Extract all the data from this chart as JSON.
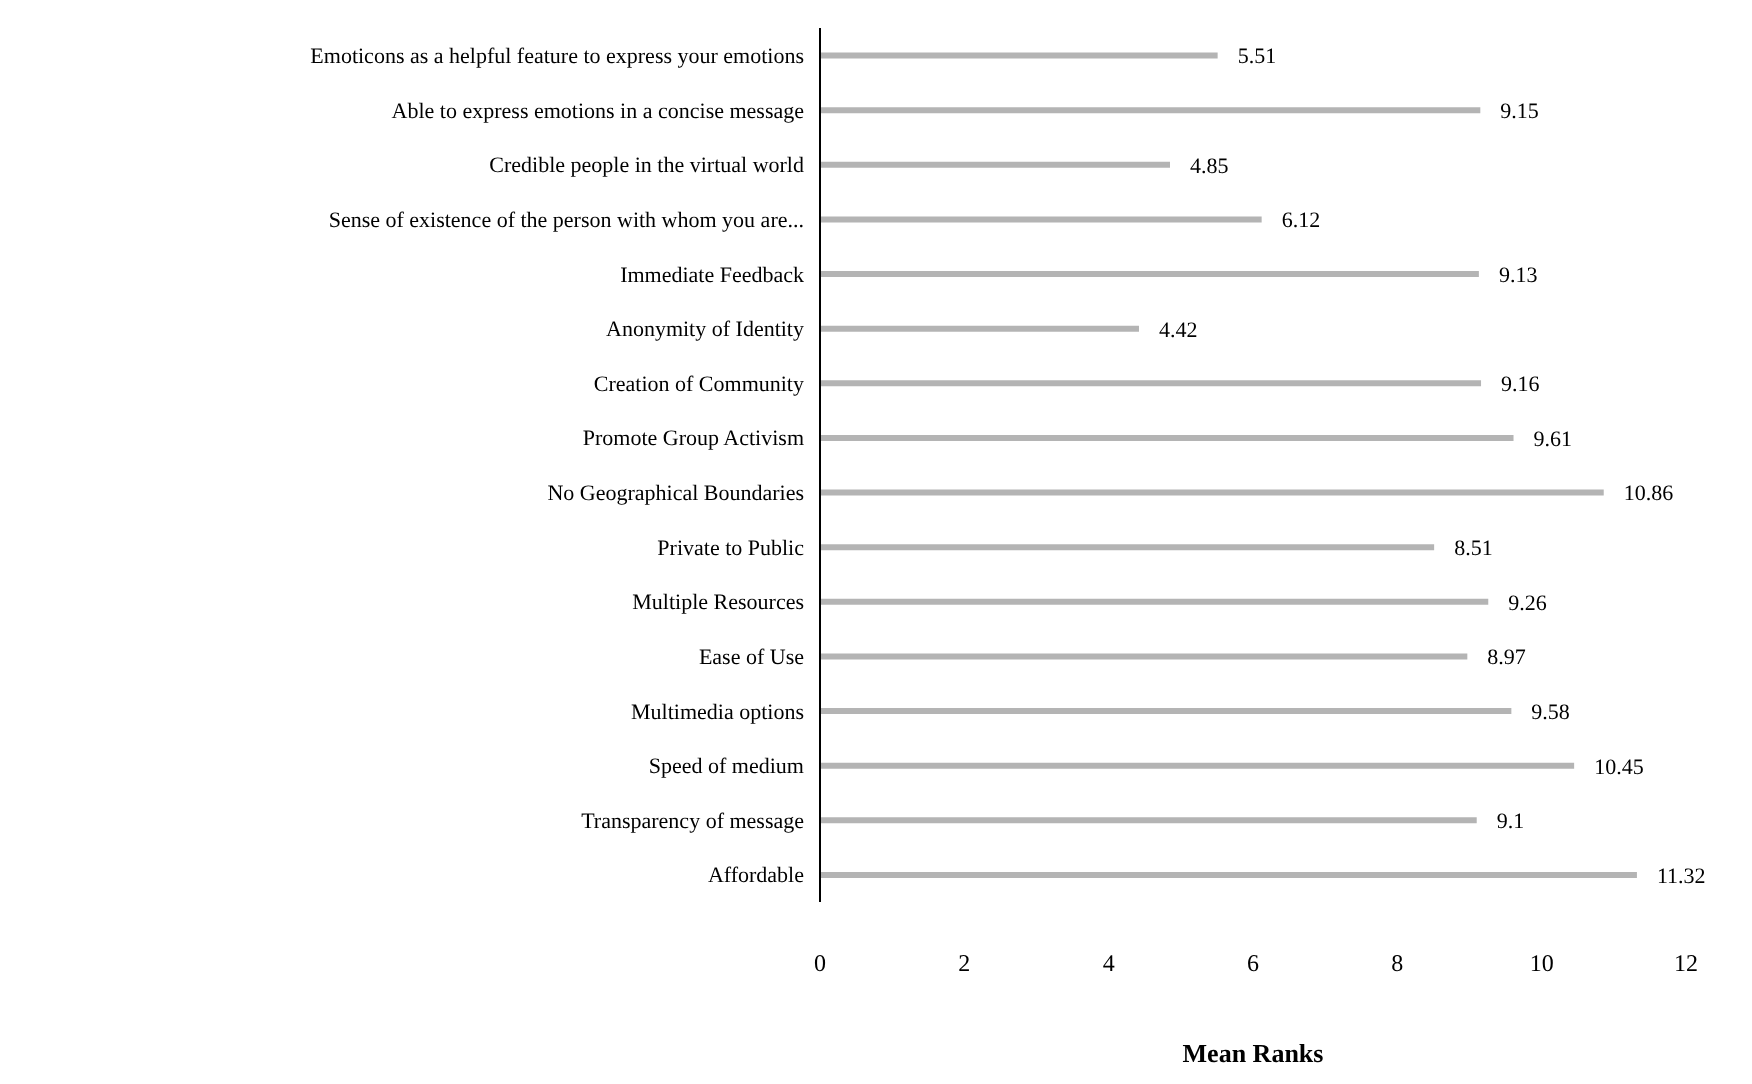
{
  "chart_data": {
    "type": "bar",
    "orientation": "horizontal",
    "xlabel": "Mean Ranks",
    "categories": [
      "Emoticons as a helpful feature to express your emotions",
      "Able to express emotions in a concise message",
      "Credible people in the virtual world",
      "Sense of existence of the person with whom you are...",
      "Immediate Feedback",
      "Anonymity of Identity",
      "Creation of Community",
      "Promote Group Activism",
      "No Geographical Boundaries",
      "Private to Public",
      "Multiple Resources",
      "Ease of Use",
      "Multimedia options",
      "Speed of medium",
      "Transparency of message",
      "Affordable"
    ],
    "values": [
      5.51,
      9.15,
      4.85,
      6.12,
      9.13,
      4.42,
      9.16,
      9.61,
      10.86,
      8.51,
      9.26,
      8.97,
      9.58,
      10.45,
      9.1,
      11.32
    ],
    "color": "#b4b4b4",
    "xlim": [
      0,
      12
    ],
    "xticks": [
      0,
      2,
      4,
      6,
      8,
      10,
      12
    ],
    "grid": false,
    "legend": false,
    "data_labels": true
  }
}
